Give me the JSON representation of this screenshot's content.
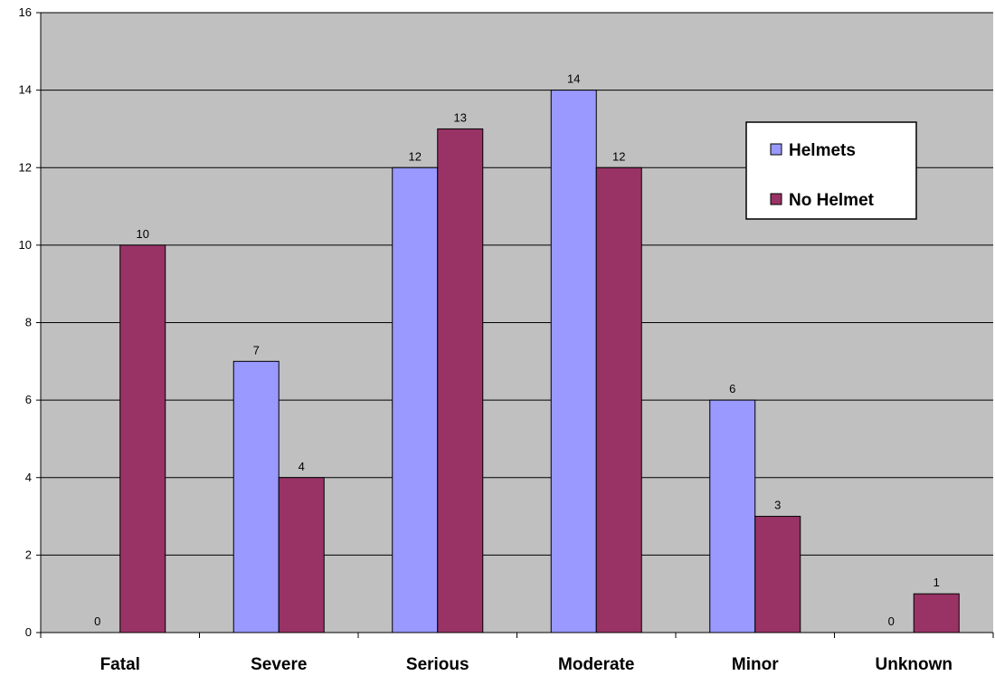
{
  "chart_data": {
    "type": "bar",
    "title": "",
    "xlabel": "",
    "ylabel": "",
    "categories": [
      "Fatal",
      "Severe",
      "Serious",
      "Moderate",
      "Minor",
      "Unknown"
    ],
    "series": [
      {
        "name": "Helmets",
        "values": [
          0,
          7,
          12,
          14,
          6,
          0
        ],
        "color": "#9999ff"
      },
      {
        "name": "No Helmet",
        "values": [
          10,
          4,
          13,
          12,
          3,
          1
        ],
        "color": "#993366"
      }
    ],
    "ylim": [
      0,
      16
    ],
    "yticks": [
      0,
      2,
      4,
      6,
      8,
      10,
      12,
      14,
      16
    ],
    "grid": true,
    "legend_position": "top-right",
    "plot_background": "#c0c0c0"
  }
}
